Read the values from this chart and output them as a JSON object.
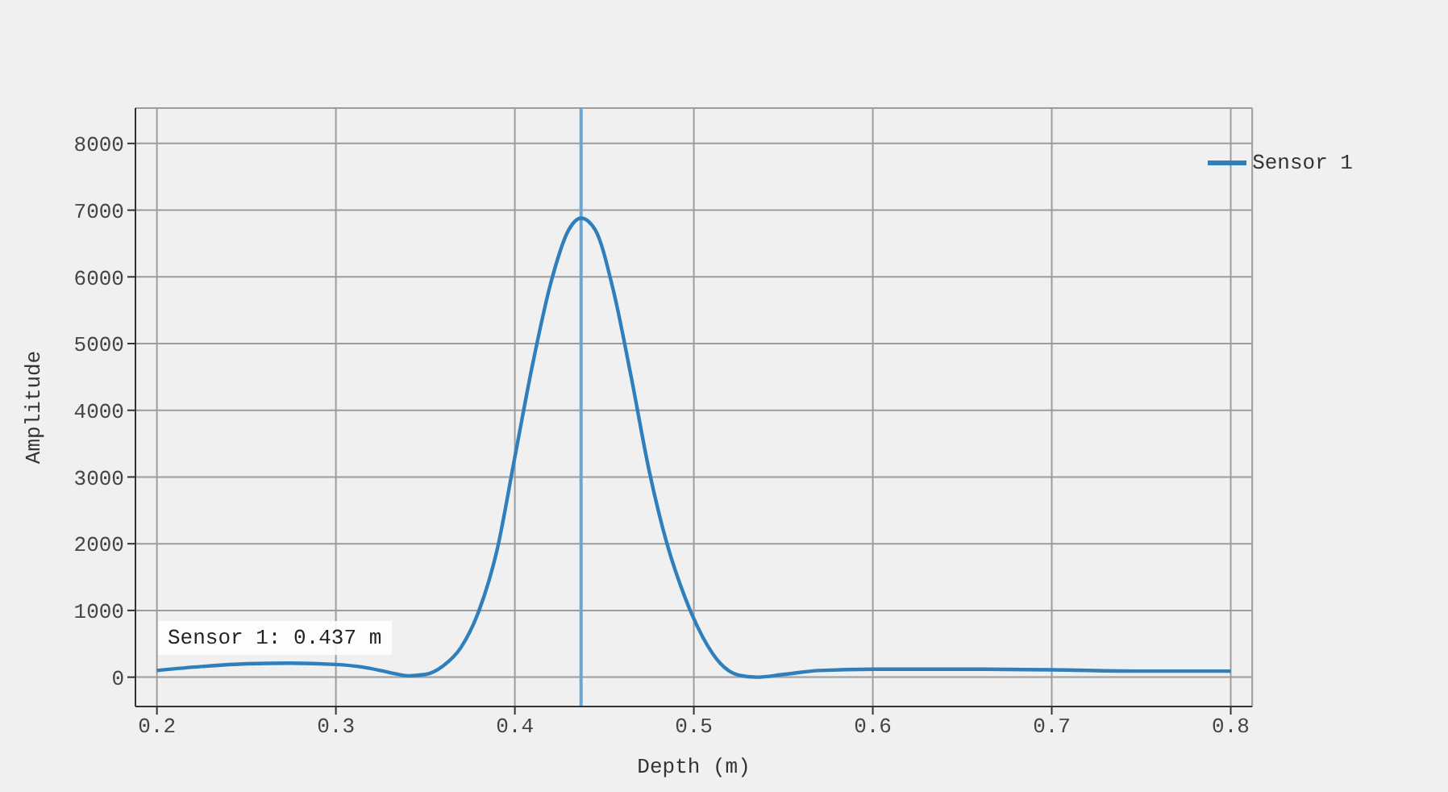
{
  "chart_data": {
    "type": "line",
    "xlabel": "Depth (m)",
    "ylabel": "Amplitude",
    "x": [
      0.2,
      0.225,
      0.25,
      0.275,
      0.3,
      0.315,
      0.33,
      0.34,
      0.35,
      0.36,
      0.37,
      0.38,
      0.39,
      0.4,
      0.41,
      0.42,
      0.43,
      0.437,
      0.445,
      0.455,
      0.465,
      0.475,
      0.485,
      0.495,
      0.505,
      0.515,
      0.525,
      0.535,
      0.55,
      0.57,
      0.6,
      0.65,
      0.7,
      0.75,
      0.8
    ],
    "series": [
      {
        "name": "Sensor 1",
        "color": "#2f7fbd",
        "values": [
          100,
          160,
          200,
          210,
          190,
          150,
          70,
          20,
          40,
          170,
          450,
          1000,
          1900,
          3300,
          4700,
          5900,
          6700,
          6880,
          6700,
          5800,
          4500,
          3100,
          2000,
          1200,
          600,
          200,
          30,
          0,
          40,
          100,
          120,
          120,
          110,
          90,
          90
        ]
      }
    ],
    "xlim": [
      0.188,
      0.812
    ],
    "ylim": [
      -440,
      8530
    ],
    "xticks": [
      0.2,
      0.3,
      0.4,
      0.5,
      0.6,
      0.7,
      0.8
    ],
    "yticks": [
      0,
      1000,
      2000,
      3000,
      4000,
      5000,
      6000,
      7000,
      8000
    ],
    "grid": true,
    "legend": "top right",
    "ref_lines": [
      {
        "axis": "x",
        "value": 0.437,
        "color": "#6aa6d6"
      }
    ],
    "annotations": [
      "Sensor 1: 0.437 m"
    ]
  }
}
